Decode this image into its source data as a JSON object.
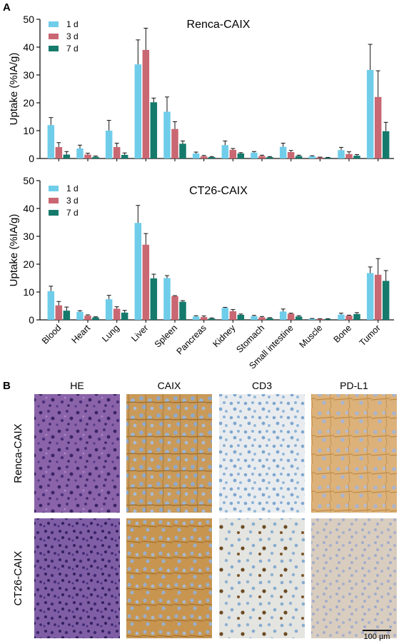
{
  "panel_labels": {
    "a": "A",
    "b": "B"
  },
  "colors": {
    "s1": "#6fcdea",
    "s2": "#c96772",
    "s3": "#157a6c"
  },
  "chart_data": [
    {
      "type": "bar",
      "title": "Renca-CAIX",
      "ylabel": "Uptake (%IA/g)",
      "xlabel": "",
      "ylim": [
        0,
        50
      ],
      "yticks": [
        0,
        10,
        20,
        30,
        40,
        50
      ],
      "grid": false,
      "legend_position": "top-left",
      "categories": [
        "Blood",
        "Heart",
        "Lung",
        "Liver",
        "Spleen",
        "Pancreas",
        "Kidney",
        "Stomach",
        "Small intestine",
        "Muscle",
        "Bone",
        "Tumor"
      ],
      "series": [
        {
          "name": "1 d",
          "color": "#6fcdea",
          "values": [
            12.0,
            3.6,
            10.0,
            33.8,
            16.8,
            1.8,
            4.8,
            2.1,
            4.2,
            0.8,
            3.0,
            31.8
          ],
          "errors": [
            2.7,
            1.2,
            3.7,
            8.8,
            5.3,
            0.5,
            1.5,
            0.4,
            1.3,
            0.2,
            1.0,
            9.2
          ]
        },
        {
          "name": "3 d",
          "color": "#c96772",
          "values": [
            4.1,
            1.4,
            4.1,
            39.0,
            10.6,
            0.8,
            3.1,
            0.9,
            2.3,
            0.4,
            1.6,
            22.1
          ],
          "errors": [
            1.6,
            0.5,
            1.4,
            7.8,
            2.6,
            0.3,
            0.5,
            0.3,
            0.6,
            0.1,
            0.8,
            9.4
          ]
        },
        {
          "name": "7 d",
          "color": "#157a6c",
          "values": [
            1.4,
            0.6,
            1.3,
            20.2,
            5.3,
            0.5,
            1.8,
            0.5,
            0.9,
            0.3,
            1.0,
            9.8
          ],
          "errors": [
            1.1,
            0.3,
            0.7,
            1.5,
            1.0,
            0.2,
            0.3,
            0.2,
            0.3,
            0.1,
            0.4,
            3.2
          ]
        }
      ]
    },
    {
      "type": "bar",
      "title": "CT26-CAIX",
      "ylabel": "Uptake (%IA/g)",
      "xlabel": "",
      "ylim": [
        0,
        50
      ],
      "yticks": [
        0,
        10,
        20,
        30,
        40,
        50
      ],
      "grid": false,
      "legend_position": "top-left",
      "categories": [
        "Blood",
        "Heart",
        "Lung",
        "Liver",
        "Spleen",
        "Pancreas",
        "Kidney",
        "Stomach",
        "Small intestine",
        "Muscle",
        "Bone",
        "Tumor"
      ],
      "series": [
        {
          "name": "1 d",
          "color": "#6fcdea",
          "values": [
            10.3,
            2.9,
            7.4,
            34.8,
            15.0,
            1.2,
            4.3,
            1.3,
            3.0,
            0.4,
            1.9,
            16.8
          ],
          "errors": [
            1.8,
            0.4,
            1.4,
            6.3,
            0.9,
            0.3,
            0.2,
            0.3,
            0.9,
            0.1,
            0.5,
            2.2
          ]
        },
        {
          "name": "3 d",
          "color": "#c96772",
          "values": [
            5.2,
            1.5,
            4.0,
            27.0,
            8.5,
            1.0,
            3.1,
            0.9,
            2.2,
            0.3,
            1.5,
            16.2
          ],
          "errors": [
            1.4,
            0.3,
            0.7,
            4.0,
            0.2,
            0.4,
            0.6,
            0.3,
            0.2,
            0.1,
            0.2,
            5.8
          ]
        },
        {
          "name": "7 d",
          "color": "#157a6c",
          "values": [
            3.3,
            0.9,
            2.6,
            14.9,
            6.5,
            0.5,
            1.8,
            0.6,
            1.2,
            0.3,
            2.1,
            14.0
          ],
          "errors": [
            1.3,
            0.2,
            0.8,
            1.5,
            0.4,
            0.2,
            0.3,
            0.2,
            0.3,
            0.1,
            0.5,
            3.7
          ]
        }
      ]
    }
  ],
  "histology": {
    "columns": [
      "HE",
      "CAIX",
      "CD3",
      "PD-L1"
    ],
    "rows": [
      "Renca-CAIX",
      "CT26-CAIX"
    ],
    "scale_bar": "100 µm"
  }
}
